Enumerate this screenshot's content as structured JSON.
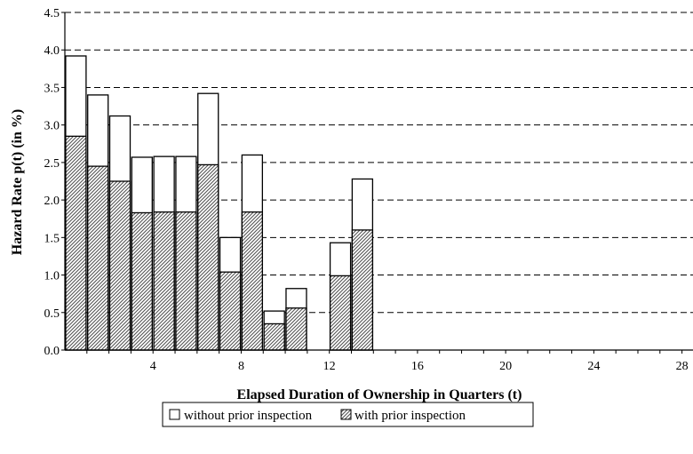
{
  "chart_data": {
    "type": "bar",
    "xlabel": "Elapsed Duration of Ownership in Quarters (t)",
    "ylabel": "Hazard Rate p(t) (in %)",
    "xlim": [
      0,
      28.5
    ],
    "ylim": [
      0,
      4.5
    ],
    "x_ticks": [
      4,
      8,
      12,
      16,
      20,
      24,
      28
    ],
    "y_ticks": [
      0.0,
      0.5,
      1.0,
      1.5,
      2.0,
      2.5,
      3.0,
      3.5,
      4.0,
      4.5
    ],
    "y_tick_labels": [
      "0.0",
      "0.5",
      "1.0",
      "1.5",
      "2.0",
      "2.5",
      "3.0",
      "3.5",
      "4.0",
      "4.5"
    ],
    "x": [
      1,
      2,
      3,
      4,
      5,
      6,
      7,
      8,
      9,
      10,
      11,
      12,
      13,
      14,
      15,
      16,
      17,
      18,
      19,
      20,
      21,
      22,
      23,
      24,
      25,
      26,
      27,
      28
    ],
    "grid": "horizontal dashed",
    "legend_position": "bottom",
    "series": [
      {
        "name": "without prior inspection",
        "fill": "#ffffff",
        "values": [
          3.92,
          3.4,
          3.12,
          2.57,
          2.58,
          2.58,
          3.42,
          1.5,
          2.6,
          0.52,
          0.82,
          0,
          1.43,
          2.28,
          0,
          0,
          0,
          0,
          0,
          0,
          0,
          0,
          0,
          0,
          0,
          0,
          0,
          0
        ]
      },
      {
        "name": "with prior inspection",
        "fill": "hatched",
        "values": [
          2.85,
          2.45,
          2.25,
          1.83,
          1.84,
          1.84,
          2.47,
          1.04,
          1.84,
          0.35,
          0.56,
          0,
          0.99,
          1.6,
          0,
          0,
          0,
          0,
          0,
          0,
          0,
          0,
          0,
          0,
          0,
          0,
          0,
          0
        ]
      }
    ]
  }
}
